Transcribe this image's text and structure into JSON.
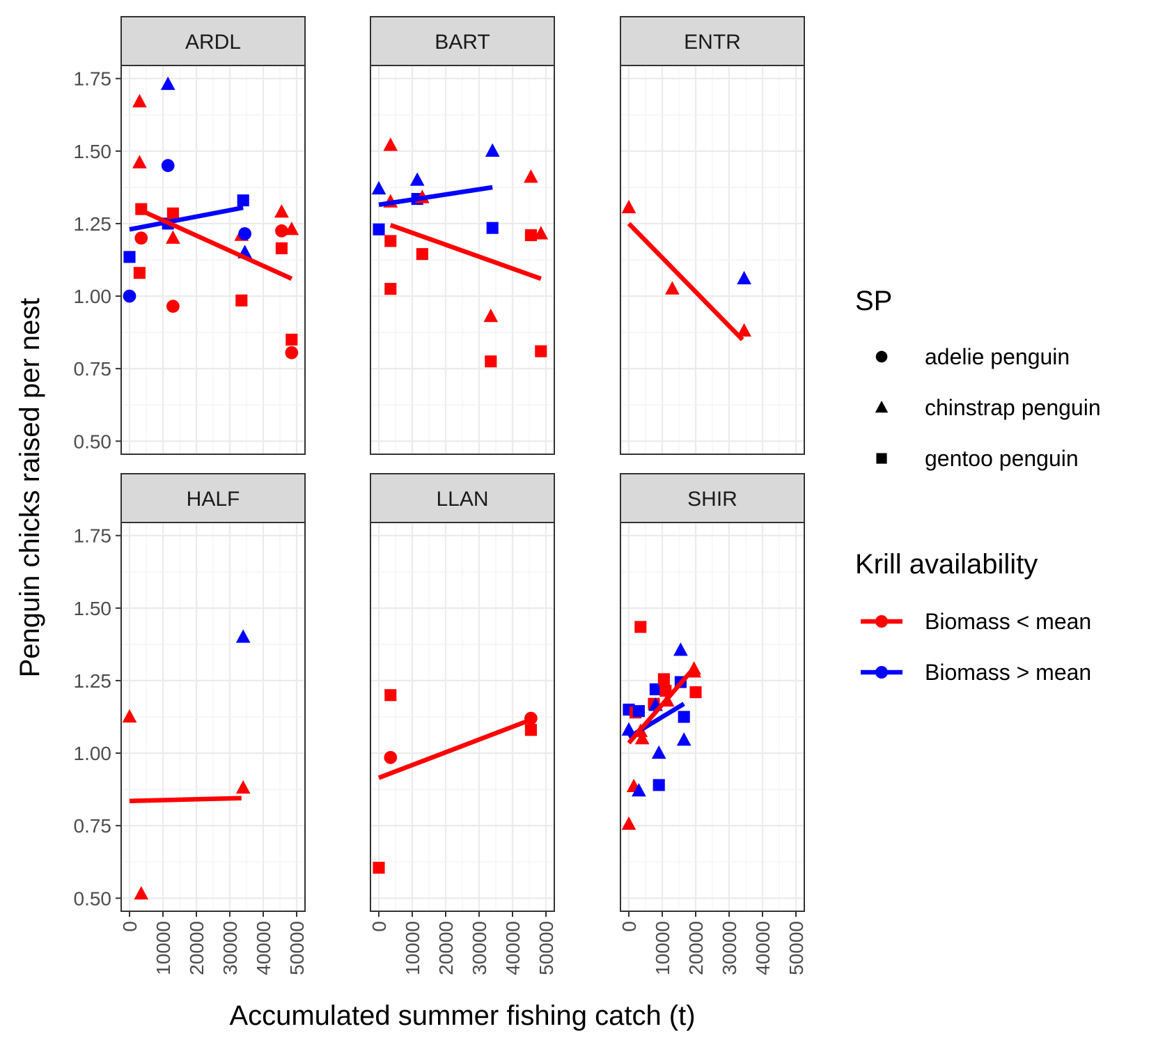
{
  "chart_data": {
    "type": "scatter",
    "xlabel": "Accumulated summer fishing catch (t)",
    "ylabel": "Penguin chicks raised per nest",
    "xlim": [
      -2500,
      52500
    ],
    "ylim": [
      0.455,
      1.795
    ],
    "x_ticks": [
      0,
      10000,
      20000,
      30000,
      40000,
      50000
    ],
    "x_tick_labels": [
      "0",
      "10000",
      "20000",
      "30000",
      "40000",
      "50000"
    ],
    "y_ticks": [
      0.5,
      0.75,
      1.0,
      1.25,
      1.5,
      1.75
    ],
    "y_tick_labels": [
      "0.50",
      "0.75",
      "1.00",
      "1.25",
      "1.50",
      "1.75"
    ],
    "grid": true,
    "colors": {
      "low": "#ff0000",
      "high": "#0000ff"
    },
    "legend": {
      "placement": "right",
      "shape_title": "SP",
      "shapes": [
        {
          "shape": "circle",
          "label": "adelie penguin"
        },
        {
          "shape": "triangle",
          "label": "chinstrap penguin"
        },
        {
          "shape": "square",
          "label": "gentoo penguin"
        }
      ],
      "color_title": "Krill availability",
      "colors": [
        {
          "key": "low",
          "label": "Biomass < mean"
        },
        {
          "key": "high",
          "label": "Biomass > mean"
        }
      ]
    },
    "panels": [
      {
        "name": "ARDL",
        "points": [
          {
            "x": 0,
            "y": 1.135,
            "shape": "square",
            "group": "high"
          },
          {
            "x": 0,
            "y": 1.0,
            "shape": "circle",
            "group": "high"
          },
          {
            "x": 3000,
            "y": 1.67,
            "shape": "triangle",
            "group": "low"
          },
          {
            "x": 3000,
            "y": 1.46,
            "shape": "triangle",
            "group": "low"
          },
          {
            "x": 3500,
            "y": 1.3,
            "shape": "square",
            "group": "low"
          },
          {
            "x": 3500,
            "y": 1.2,
            "shape": "circle",
            "group": "low"
          },
          {
            "x": 3000,
            "y": 1.08,
            "shape": "square",
            "group": "low"
          },
          {
            "x": 11500,
            "y": 1.73,
            "shape": "triangle",
            "group": "high"
          },
          {
            "x": 11500,
            "y": 1.45,
            "shape": "circle",
            "group": "high"
          },
          {
            "x": 11500,
            "y": 1.25,
            "shape": "square",
            "group": "high"
          },
          {
            "x": 13000,
            "y": 1.285,
            "shape": "square",
            "group": "low"
          },
          {
            "x": 13000,
            "y": 1.2,
            "shape": "triangle",
            "group": "low"
          },
          {
            "x": 13000,
            "y": 0.965,
            "shape": "circle",
            "group": "low"
          },
          {
            "x": 33500,
            "y": 1.21,
            "shape": "triangle",
            "group": "low"
          },
          {
            "x": 34000,
            "y": 1.33,
            "shape": "square",
            "group": "high"
          },
          {
            "x": 34500,
            "y": 1.215,
            "shape": "circle",
            "group": "high"
          },
          {
            "x": 34500,
            "y": 1.15,
            "shape": "triangle",
            "group": "high"
          },
          {
            "x": 33500,
            "y": 0.985,
            "shape": "square",
            "group": "low"
          },
          {
            "x": 45500,
            "y": 1.29,
            "shape": "triangle",
            "group": "low"
          },
          {
            "x": 45500,
            "y": 1.225,
            "shape": "circle",
            "group": "low"
          },
          {
            "x": 45500,
            "y": 1.165,
            "shape": "square",
            "group": "low"
          },
          {
            "x": 48500,
            "y": 1.23,
            "shape": "triangle",
            "group": "low"
          },
          {
            "x": 48500,
            "y": 0.85,
            "shape": "square",
            "group": "low"
          },
          {
            "x": 48500,
            "y": 0.805,
            "shape": "circle",
            "group": "low"
          }
        ],
        "lines": [
          {
            "group": "high",
            "x": [
              0,
              34000
            ],
            "y": [
              1.23,
              1.305
            ]
          },
          {
            "group": "low",
            "x": [
              3500,
              48500
            ],
            "y": [
              1.295,
              1.06
            ]
          }
        ]
      },
      {
        "name": "BART",
        "points": [
          {
            "x": 0,
            "y": 1.37,
            "shape": "triangle",
            "group": "high"
          },
          {
            "x": 0,
            "y": 1.23,
            "shape": "square",
            "group": "high"
          },
          {
            "x": 3500,
            "y": 1.52,
            "shape": "triangle",
            "group": "low"
          },
          {
            "x": 3500,
            "y": 1.325,
            "shape": "triangle",
            "group": "low"
          },
          {
            "x": 3500,
            "y": 1.19,
            "shape": "square",
            "group": "low"
          },
          {
            "x": 3500,
            "y": 1.025,
            "shape": "square",
            "group": "low"
          },
          {
            "x": 11500,
            "y": 1.4,
            "shape": "triangle",
            "group": "high"
          },
          {
            "x": 11500,
            "y": 1.335,
            "shape": "square",
            "group": "high"
          },
          {
            "x": 13000,
            "y": 1.34,
            "shape": "triangle",
            "group": "low"
          },
          {
            "x": 13000,
            "y": 1.145,
            "shape": "square",
            "group": "low"
          },
          {
            "x": 34000,
            "y": 1.5,
            "shape": "triangle",
            "group": "high"
          },
          {
            "x": 34000,
            "y": 1.235,
            "shape": "square",
            "group": "high"
          },
          {
            "x": 33500,
            "y": 0.93,
            "shape": "triangle",
            "group": "low"
          },
          {
            "x": 33500,
            "y": 0.775,
            "shape": "square",
            "group": "low"
          },
          {
            "x": 45500,
            "y": 1.41,
            "shape": "triangle",
            "group": "low"
          },
          {
            "x": 45500,
            "y": 1.21,
            "shape": "square",
            "group": "low"
          },
          {
            "x": 48500,
            "y": 1.215,
            "shape": "triangle",
            "group": "low"
          },
          {
            "x": 48500,
            "y": 0.81,
            "shape": "square",
            "group": "low"
          }
        ],
        "lines": [
          {
            "group": "high",
            "x": [
              0,
              34000
            ],
            "y": [
              1.315,
              1.375
            ]
          },
          {
            "group": "low",
            "x": [
              3500,
              48500
            ],
            "y": [
              1.245,
              1.06
            ]
          }
        ]
      },
      {
        "name": "ENTR",
        "points": [
          {
            "x": 0,
            "y": 1.305,
            "shape": "triangle",
            "group": "low"
          },
          {
            "x": 13000,
            "y": 1.025,
            "shape": "triangle",
            "group": "low"
          },
          {
            "x": 34500,
            "y": 1.06,
            "shape": "triangle",
            "group": "high"
          },
          {
            "x": 34500,
            "y": 0.88,
            "shape": "triangle",
            "group": "low"
          }
        ],
        "lines": [
          {
            "group": "low",
            "x": [
              0,
              34000
            ],
            "y": [
              1.25,
              0.85
            ]
          }
        ]
      },
      {
        "name": "HALF",
        "points": [
          {
            "x": 0,
            "y": 1.125,
            "shape": "triangle",
            "group": "low"
          },
          {
            "x": 3500,
            "y": 0.515,
            "shape": "triangle",
            "group": "low"
          },
          {
            "x": 34000,
            "y": 1.4,
            "shape": "triangle",
            "group": "high"
          },
          {
            "x": 34000,
            "y": 0.88,
            "shape": "triangle",
            "group": "low"
          }
        ],
        "lines": [
          {
            "group": "low",
            "x": [
              0,
              33500
            ],
            "y": [
              0.835,
              0.845
            ]
          }
        ]
      },
      {
        "name": "LLAN",
        "points": [
          {
            "x": 0,
            "y": 0.605,
            "shape": "square",
            "group": "low"
          },
          {
            "x": 3500,
            "y": 1.2,
            "shape": "square",
            "group": "low"
          },
          {
            "x": 3500,
            "y": 0.985,
            "shape": "circle",
            "group": "low"
          },
          {
            "x": 45500,
            "y": 1.12,
            "shape": "circle",
            "group": "low"
          },
          {
            "x": 45500,
            "y": 1.08,
            "shape": "square",
            "group": "low"
          }
        ],
        "lines": [
          {
            "group": "low",
            "x": [
              0,
              45500
            ],
            "y": [
              0.915,
              1.115
            ]
          }
        ]
      },
      {
        "name": "SHIR",
        "points": [
          {
            "x": 0,
            "y": 1.15,
            "shape": "square",
            "group": "high"
          },
          {
            "x": 0,
            "y": 1.08,
            "shape": "triangle",
            "group": "high"
          },
          {
            "x": 0,
            "y": 0.755,
            "shape": "triangle",
            "group": "low"
          },
          {
            "x": 1500,
            "y": 0.885,
            "shape": "triangle",
            "group": "low"
          },
          {
            "x": 2000,
            "y": 1.14,
            "shape": "square",
            "group": "low"
          },
          {
            "x": 3000,
            "y": 1.145,
            "shape": "square",
            "group": "high"
          },
          {
            "x": 3000,
            "y": 0.87,
            "shape": "triangle",
            "group": "high"
          },
          {
            "x": 3500,
            "y": 1.435,
            "shape": "square",
            "group": "low"
          },
          {
            "x": 3500,
            "y": 1.075,
            "shape": "triangle",
            "group": "low"
          },
          {
            "x": 4000,
            "y": 1.05,
            "shape": "triangle",
            "group": "low"
          },
          {
            "x": 7500,
            "y": 1.17,
            "shape": "square",
            "group": "low"
          },
          {
            "x": 8000,
            "y": 1.22,
            "shape": "square",
            "group": "high"
          },
          {
            "x": 8000,
            "y": 1.165,
            "shape": "triangle",
            "group": "high"
          },
          {
            "x": 9000,
            "y": 1.0,
            "shape": "triangle",
            "group": "high"
          },
          {
            "x": 9000,
            "y": 0.89,
            "shape": "square",
            "group": "high"
          },
          {
            "x": 10500,
            "y": 1.255,
            "shape": "square",
            "group": "low"
          },
          {
            "x": 11000,
            "y": 1.215,
            "shape": "square",
            "group": "low"
          },
          {
            "x": 11500,
            "y": 1.18,
            "shape": "triangle",
            "group": "low"
          },
          {
            "x": 15500,
            "y": 1.355,
            "shape": "triangle",
            "group": "high"
          },
          {
            "x": 15500,
            "y": 1.245,
            "shape": "square",
            "group": "high"
          },
          {
            "x": 16500,
            "y": 1.125,
            "shape": "square",
            "group": "high"
          },
          {
            "x": 16500,
            "y": 1.045,
            "shape": "triangle",
            "group": "high"
          },
          {
            "x": 19500,
            "y": 1.29,
            "shape": "triangle",
            "group": "low"
          },
          {
            "x": 19500,
            "y": 1.28,
            "shape": "triangle",
            "group": "low"
          },
          {
            "x": 20000,
            "y": 1.21,
            "shape": "square",
            "group": "low"
          }
        ],
        "lines": [
          {
            "group": "high",
            "x": [
              0,
              16500
            ],
            "y": [
              1.055,
              1.17
            ]
          },
          {
            "group": "low",
            "x": [
              0,
              20000
            ],
            "y": [
              1.035,
              1.3
            ]
          }
        ]
      }
    ]
  }
}
